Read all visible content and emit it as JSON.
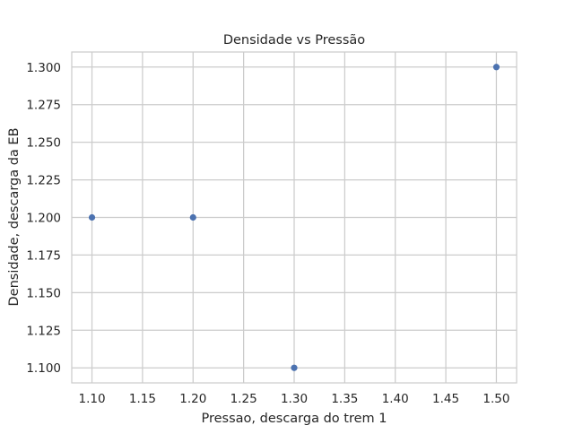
{
  "chart_data": {
    "type": "scatter",
    "title": "Densidade vs Pressão",
    "xlabel": "Pressao, descarga do trem 1",
    "ylabel": "Densidade, descarga da EB",
    "points": [
      {
        "x": 1.1,
        "y": 1.2
      },
      {
        "x": 1.2,
        "y": 1.2
      },
      {
        "x": 1.3,
        "y": 1.1
      },
      {
        "x": 1.5,
        "y": 1.3
      }
    ],
    "xlim": [
      1.08,
      1.52
    ],
    "ylim": [
      1.09,
      1.31
    ],
    "xticks": [
      1.1,
      1.15,
      1.2,
      1.25,
      1.3,
      1.35,
      1.4,
      1.45,
      1.5
    ],
    "yticks": [
      1.1,
      1.125,
      1.15,
      1.175,
      1.2,
      1.225,
      1.25,
      1.275,
      1.3
    ],
    "xtick_labels": [
      "1.10",
      "1.15",
      "1.20",
      "1.25",
      "1.30",
      "1.35",
      "1.40",
      "1.45",
      "1.50"
    ],
    "ytick_labels": [
      "1.100",
      "1.125",
      "1.150",
      "1.175",
      "1.200",
      "1.225",
      "1.250",
      "1.275",
      "1.300"
    ],
    "grid": true,
    "colors": {
      "marker": "#4c72b0",
      "grid": "#cccccc",
      "spine": "#cccccc",
      "background": "#ffffff"
    }
  }
}
